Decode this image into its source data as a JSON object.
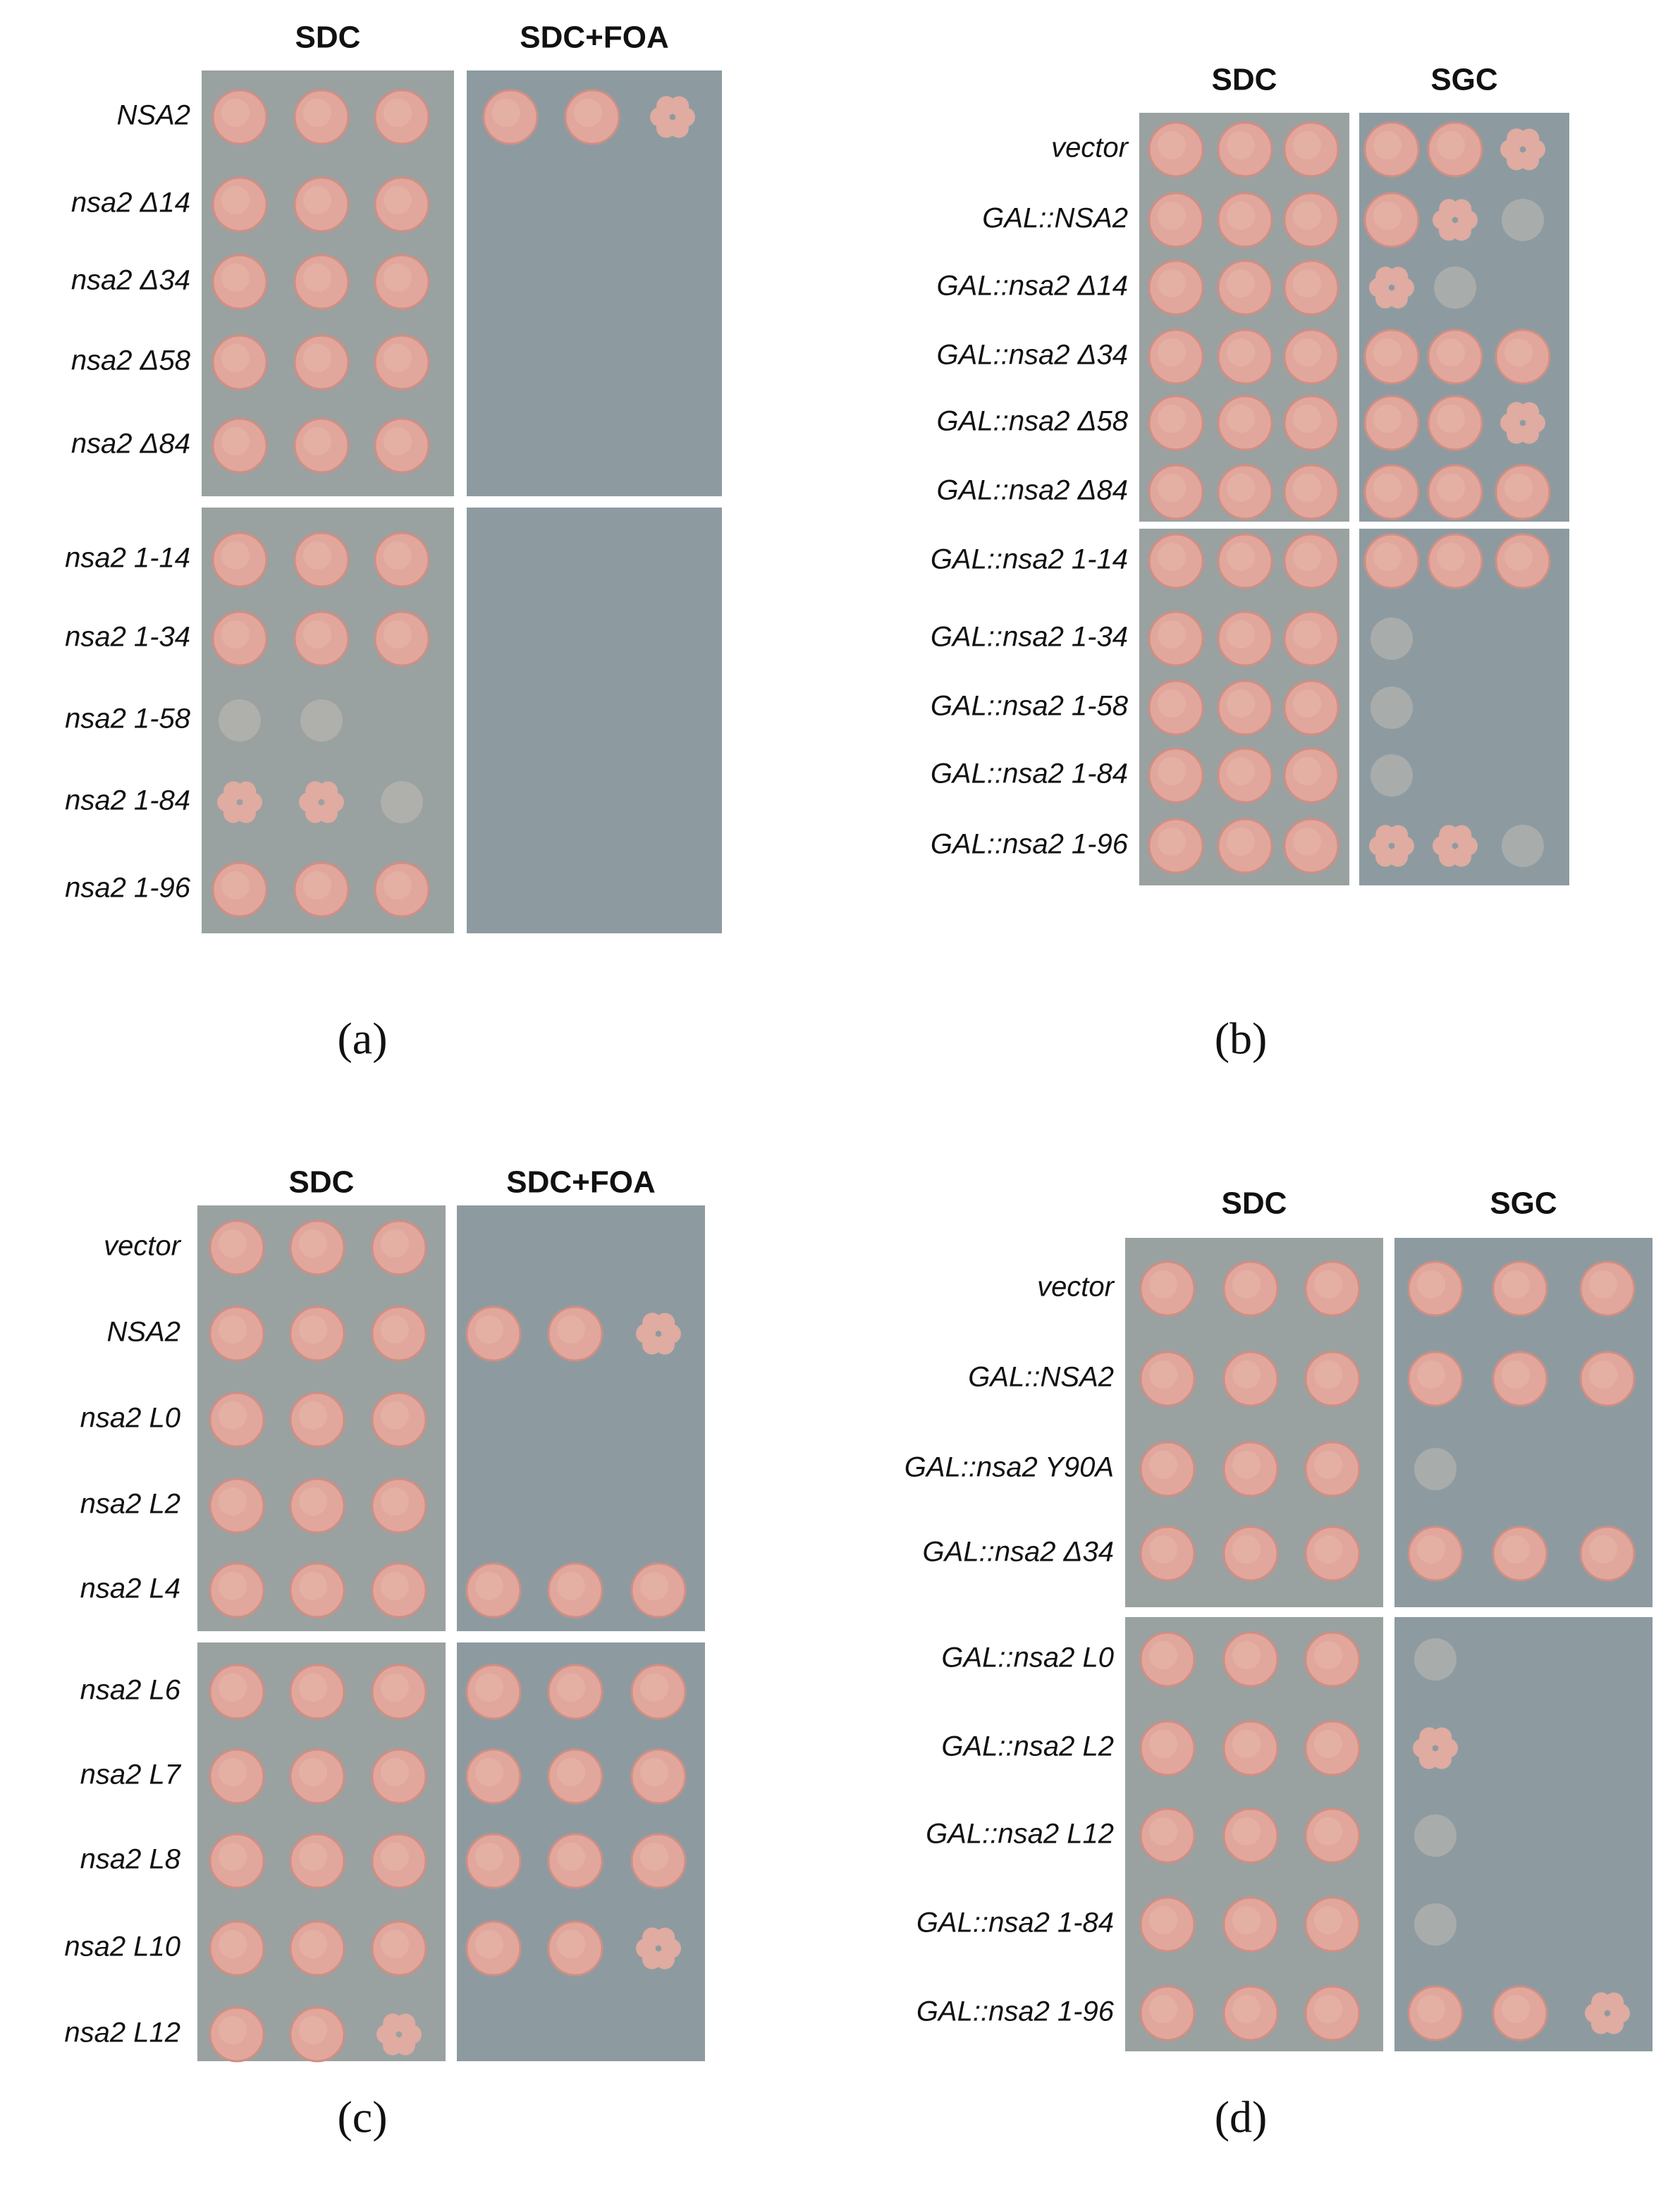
{
  "panels": [
    {
      "label": "(a)",
      "columns": [
        "SDC",
        "SDC+FOA"
      ],
      "rows": [
        [
          "NSA2",
          "nsa2 Δ14",
          "nsa2 Δ34",
          "nsa2 Δ58",
          "nsa2 Δ84"
        ],
        [
          "nsa2 1-14",
          "nsa2 1-34",
          "nsa2 1-58",
          "nsa2 1-84",
          "nsa2 1-96"
        ]
      ]
    },
    {
      "label": "(b)",
      "columns": [
        "SDC",
        "SGC"
      ],
      "rows": [
        [
          "vector",
          "GAL::NSA2",
          "GAL::nsa2 Δ14",
          "GAL::nsa2 Δ34",
          "GAL::nsa2 Δ58",
          "GAL::nsa2 Δ84"
        ],
        [
          "GAL::nsa2 1-14",
          "GAL::nsa2 1-34",
          "GAL::nsa2 1-58",
          "GAL::nsa2 1-84",
          "GAL::nsa2 1-96"
        ]
      ]
    },
    {
      "label": "(c)",
      "columns": [
        "SDC",
        "SDC+FOA"
      ],
      "rows": [
        [
          "vector",
          "NSA2",
          "nsa2 L0",
          "nsa2 L2",
          "nsa2 L4"
        ],
        [
          "nsa2 L6",
          "nsa2 L7",
          "nsa2 L8",
          "nsa2 L10",
          "nsa2 L12"
        ]
      ]
    },
    {
      "label": "(d)",
      "columns": [
        "SDC",
        "SGC"
      ],
      "rows": [
        [
          "vector",
          "GAL::NSA2",
          "GAL::nsa2 Y90A",
          "GAL::nsa2 Δ34"
        ],
        [
          "GAL::nsa2 L0",
          "GAL::nsa2 L2",
          "GAL::nsa2 L12",
          "GAL::nsa2 1-84",
          "GAL::nsa2 1-96"
        ]
      ]
    }
  ]
}
